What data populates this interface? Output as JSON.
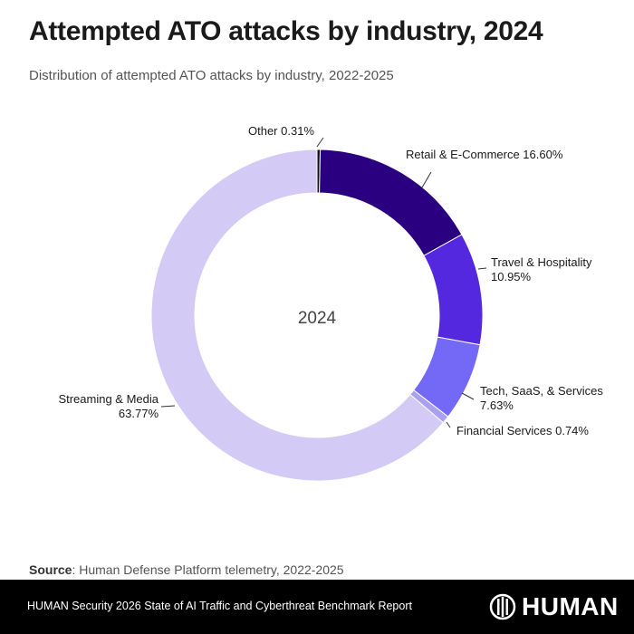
{
  "header": {
    "title": "Attempted ATO attacks by industry, 2024",
    "subtitle": "Distribution of attempted ATO attacks by industry, 2022-2025"
  },
  "chart_data": {
    "type": "pie",
    "variant": "donut",
    "title": "Attempted ATO attacks by industry, 2024",
    "center_label": "2024",
    "unit": "%",
    "slices": [
      {
        "label": "Other",
        "value": 0.31,
        "display": "Other 0.31%",
        "color": "#111111"
      },
      {
        "label": "Retail & E-Commerce",
        "value": 16.6,
        "display": "Retail & E-Commerce 16.60%",
        "color": "#2a0081"
      },
      {
        "label": "Travel & Hospitality",
        "value": 10.95,
        "display": "Travel & Hospitality|10.95%",
        "color": "#5328de"
      },
      {
        "label": "Tech, SaaS, & Services",
        "value": 7.63,
        "display": "Tech, SaaS, & Services|7.63%",
        "color": "#7369f6"
      },
      {
        "label": "Financial Services",
        "value": 0.74,
        "display": "Financial Services 0.74%",
        "color": "#ab9fef"
      },
      {
        "label": "Streaming & Media",
        "value": 63.77,
        "display": "Streaming & Media|63.77%",
        "color": "#d3cbf5"
      }
    ]
  },
  "source": {
    "label": "Source",
    "text": ": Human Defense Platform telemetry, 2022-2025"
  },
  "footer": {
    "report": "HUMAN Security 2026 State of AI Traffic and Cyberthreat Benchmark Report",
    "logo_text": "HUMAN"
  }
}
